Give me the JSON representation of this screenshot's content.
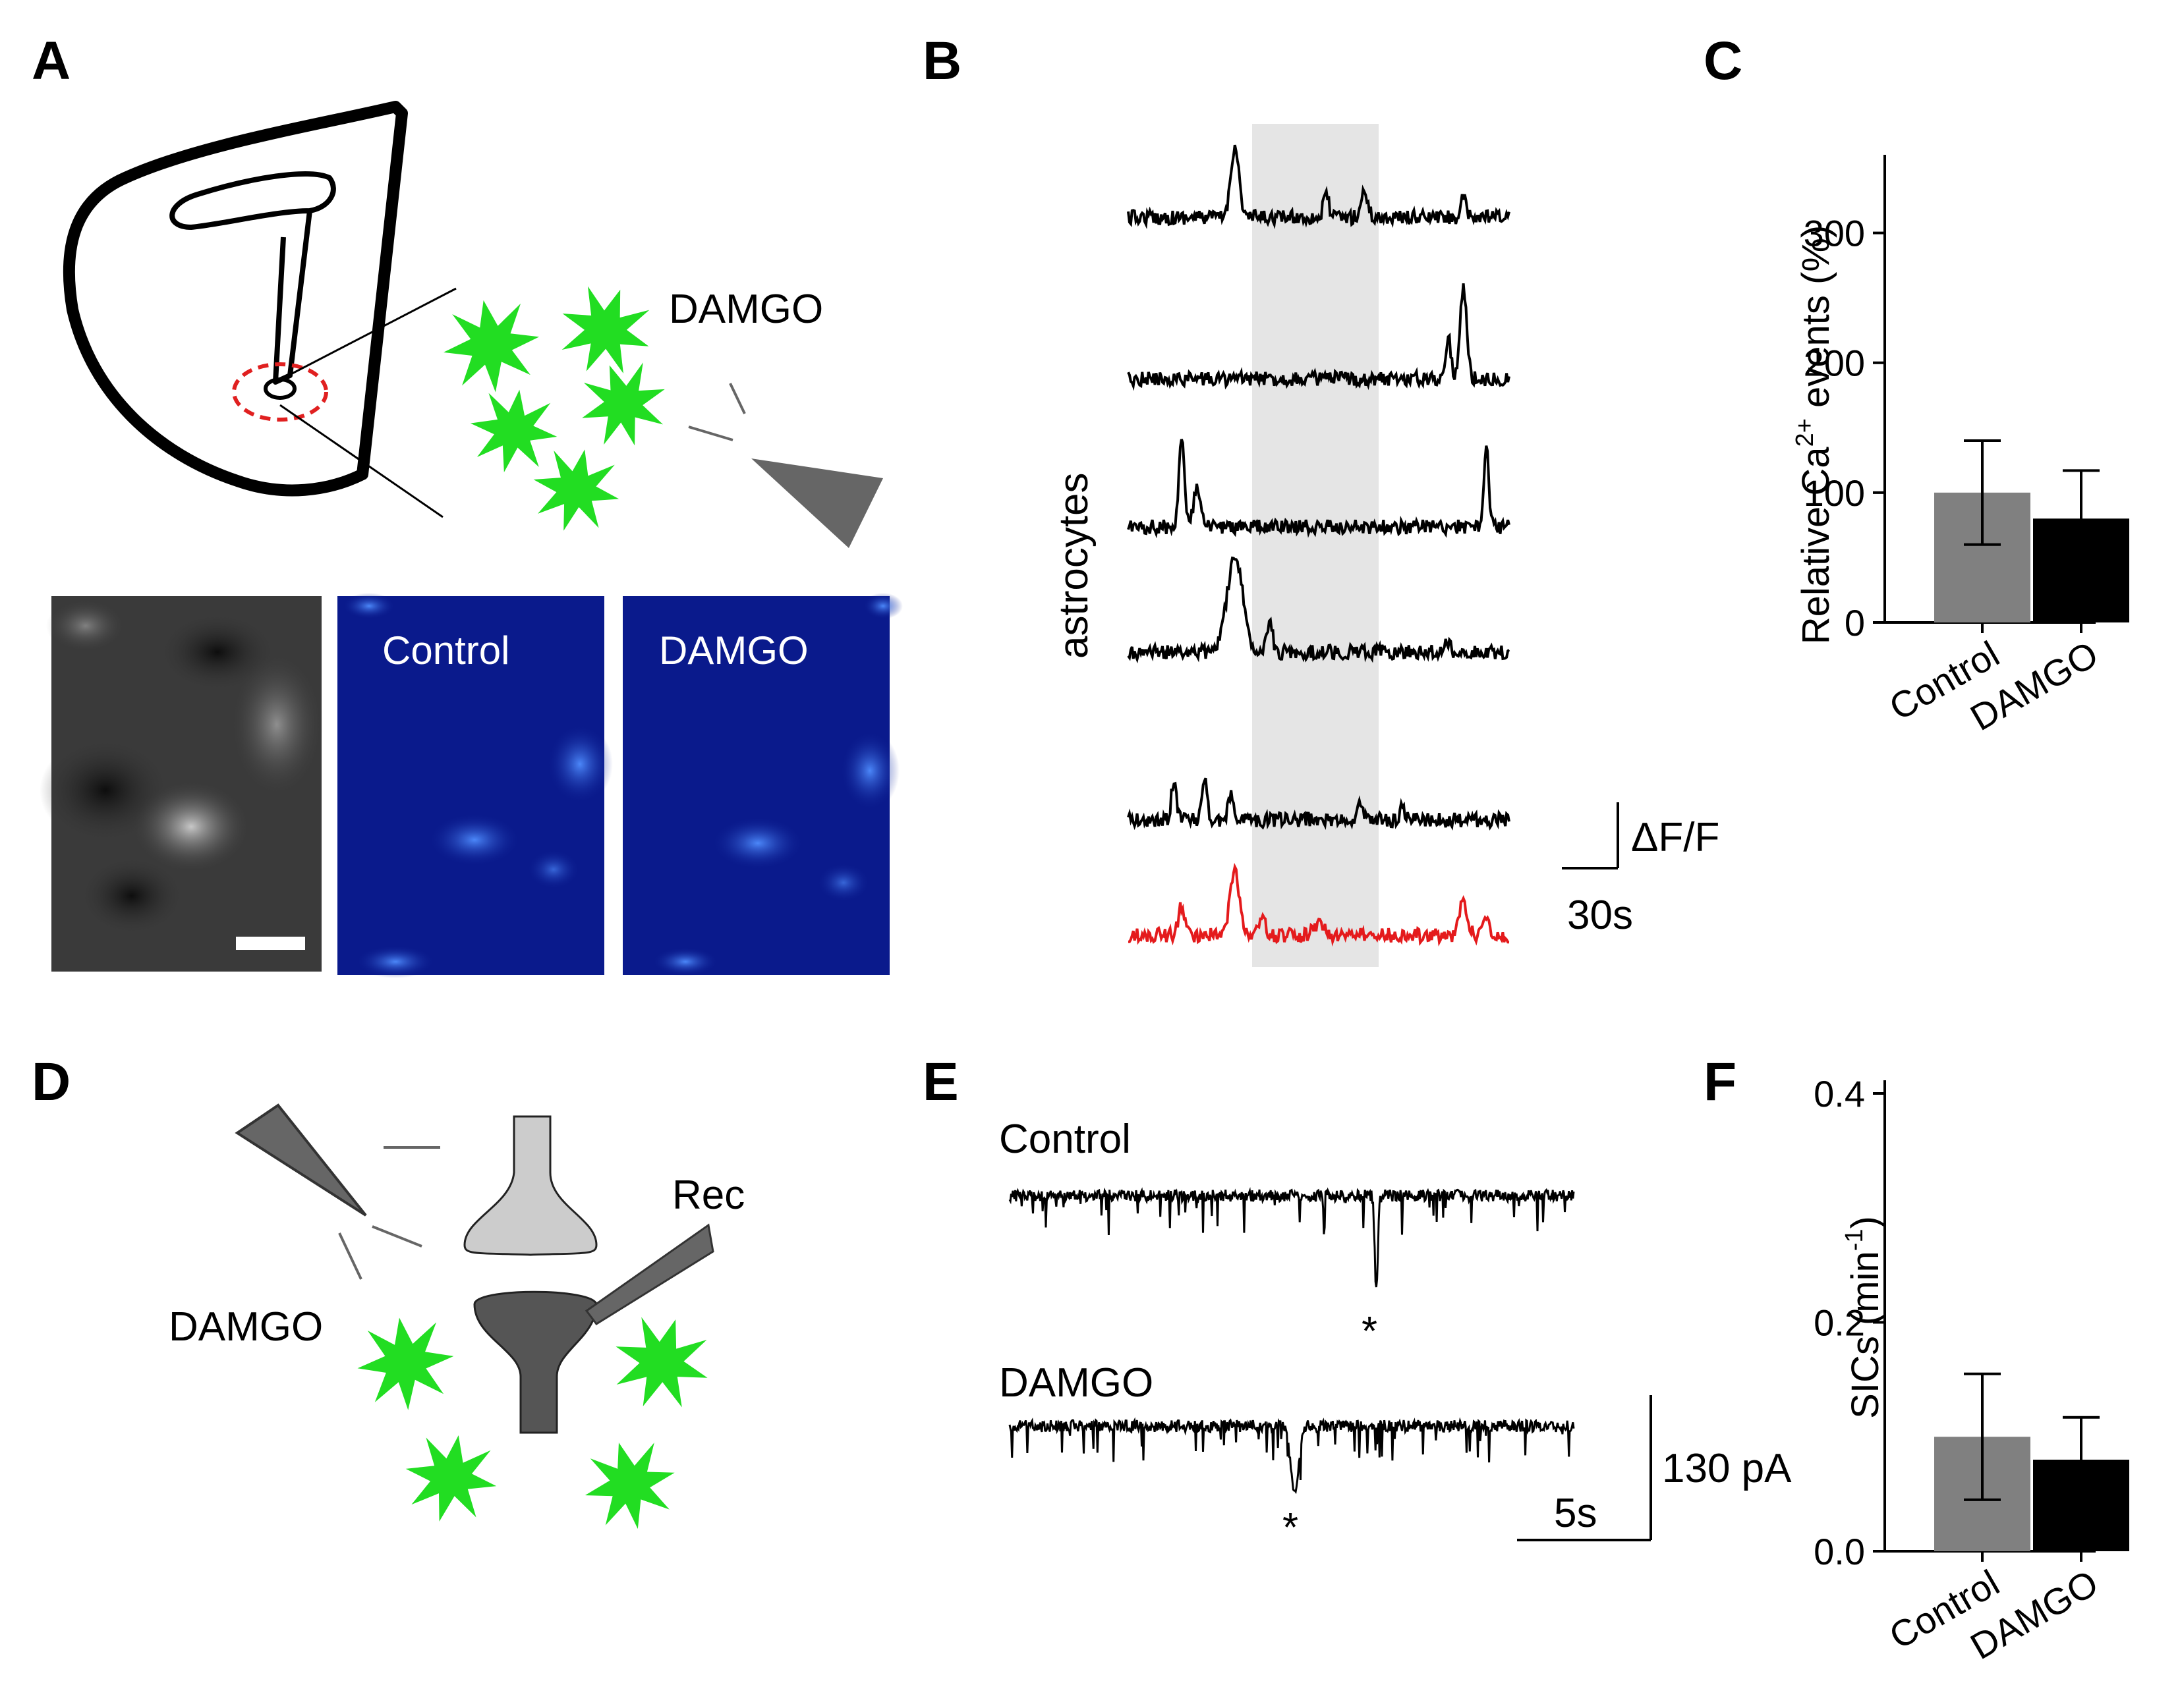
{
  "panels": {
    "A": {
      "letter": "A",
      "drug_label": "DAMGO",
      "image_labels": [
        "Control",
        "DAMGO"
      ],
      "colors": {
        "astrocyte": "#22dd22",
        "roi_circle": "#e02020",
        "pipette": "#666666",
        "image_blue": "#0a1a8c"
      }
    },
    "B": {
      "letter": "B",
      "ylabel": "astrocytes",
      "scale_y": "ΔF/F",
      "scale_x": "30s",
      "colors": {
        "trace": "#000000",
        "mean_trace": "#e41a1c",
        "application": "#e5e5e5"
      }
    },
    "C": {
      "letter": "C"
    },
    "D": {
      "letter": "D",
      "drug_label": "DAMGO",
      "rec_label": "Rec",
      "colors": {
        "astrocyte": "#22dd22",
        "presynaptic": "#cccccc",
        "postsynaptic": "#555555"
      }
    },
    "E": {
      "letter": "E",
      "control_label": "Control",
      "damgo_label": "DAMGO",
      "marker": "*",
      "scale_y": "130 pA",
      "scale_x": "5s"
    },
    "F": {
      "letter": "F"
    }
  },
  "chart_data": [
    {
      "id": "C",
      "type": "bar",
      "categories": [
        "Control",
        "DAMGO"
      ],
      "values": [
        100,
        80
      ],
      "errors": [
        40,
        37
      ],
      "ylabel_main": "Relative Ca",
      "ylabel_sup": "2+",
      "ylabel_rest": " events (%)",
      "ylim": [
        0,
        350
      ],
      "yticks": [
        0,
        100,
        200,
        300
      ],
      "colors": [
        "#808080",
        "#000000"
      ]
    },
    {
      "id": "F",
      "type": "bar",
      "categories": [
        "Control",
        "DAMGO"
      ],
      "values": [
        0.1,
        0.08
      ],
      "errors": [
        0.055,
        0.037
      ],
      "ylabel_main": "SICs (min",
      "ylabel_sup": "-1",
      "ylabel_rest": ")",
      "ylim": [
        0,
        0.4
      ],
      "yticks": [
        "0.0",
        "0.2",
        "0.4"
      ],
      "colors": [
        "#808080",
        "#000000"
      ]
    }
  ]
}
